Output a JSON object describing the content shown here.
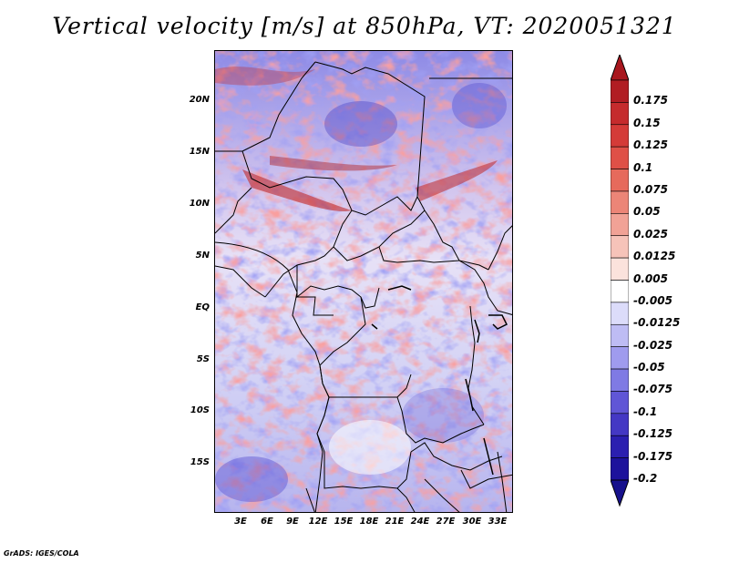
{
  "title": "Vertical velocity [m/s] at 850hPa, VT: 2020051321",
  "lat_labels": [
    "20N",
    "15N",
    "10N",
    "5N",
    "EQ",
    "5S",
    "10S",
    "15S"
  ],
  "lon_labels": [
    "3E",
    "6E",
    "9E",
    "12E",
    "15E",
    "18E",
    "21E",
    "24E",
    "27E",
    "30E",
    "33E"
  ],
  "colorbar": {
    "labels": [
      "0.175",
      "0.15",
      "0.125",
      "0.1",
      "0.075",
      "0.05",
      "0.025",
      "0.0125",
      "0.005",
      "-0.005",
      "-0.0125",
      "-0.025",
      "-0.05",
      "-0.075",
      "-0.1",
      "-0.125",
      "-0.175",
      "-0.2"
    ],
    "colors": [
      "#b11d23",
      "#c52b2d",
      "#d43b38",
      "#df5047",
      "#e66a5c",
      "#ec8577",
      "#f1a296",
      "#f6c3b9",
      "#fbe2dc",
      "#ffffff",
      "#dcdcfa",
      "#bebcf4",
      "#9f9bee",
      "#7f7ae4",
      "#6056d6",
      "#4438c4",
      "#2b1fb0",
      "#1d129c"
    ],
    "top_arrow_color": "#a8171e",
    "bottom_arrow_color": "#17118c"
  },
  "credit": "GrADS: IGES/COLA"
}
